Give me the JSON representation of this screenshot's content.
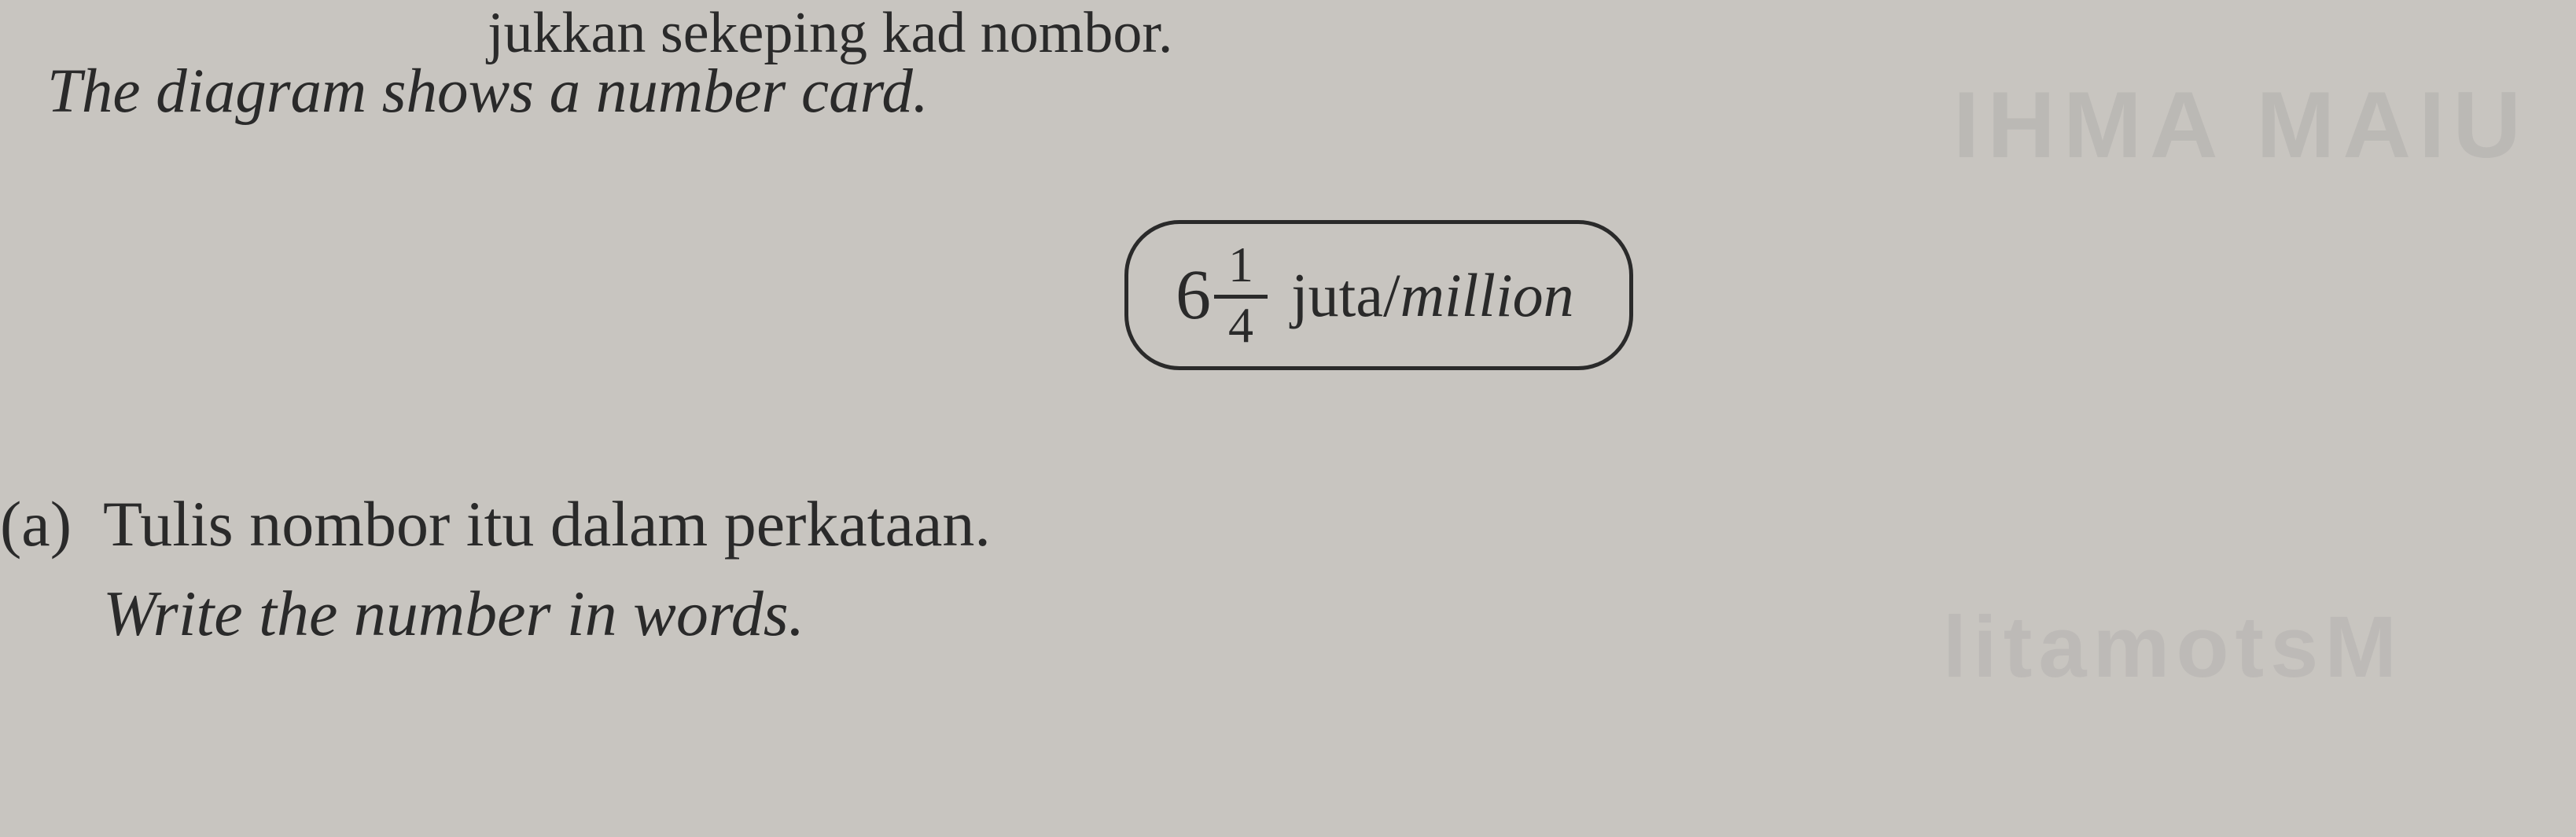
{
  "intro": {
    "malay_partial": "jukkan sekeping kad nombor.",
    "english": "The diagram shows a number card."
  },
  "number_card": {
    "whole": "6",
    "numerator": "1",
    "denominator": "4",
    "unit_plain": "juta/",
    "unit_italic": "million"
  },
  "question": {
    "label": "(a)",
    "malay": "Tulis nombor itu dalam perkataan.",
    "english": "Write the number in words."
  },
  "background_faint": {
    "text1": "IHMA MAIU",
    "text2": "litamotsM",
    "text3": ""
  },
  "styling": {
    "background_color": "#c8c5c0",
    "text_color": "#2a2a2a",
    "font_family": "Times New Roman",
    "body_fontsize": 82,
    "card_border_color": "#2a2a2a",
    "card_border_width": 5,
    "card_border_radius": 70
  }
}
